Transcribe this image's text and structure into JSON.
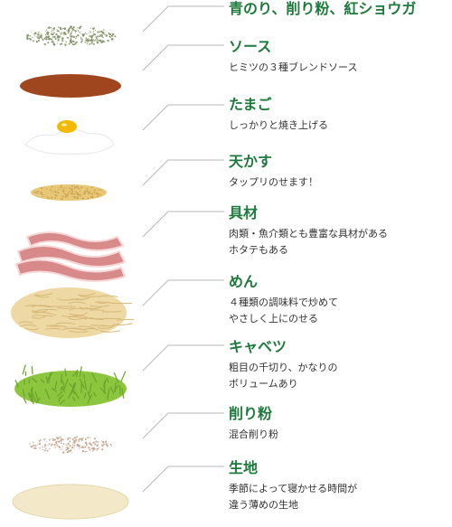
{
  "layers": [
    {
      "title": "青のり、削り粉、紅ショウガ",
      "desc": []
    },
    {
      "title": "ソース",
      "desc": [
        "ヒミツの３種ブレンドソース"
      ]
    },
    {
      "title": "たまご",
      "desc": [
        "しっかりと焼き上げる"
      ]
    },
    {
      "title": "天かす",
      "desc": [
        "タップリのせます！"
      ]
    },
    {
      "title": "具材",
      "desc": [
        "肉類・魚介類とも豊富な具材がある",
        "ホタテもある"
      ]
    },
    {
      "title": "めん",
      "desc": [
        "４種類の調味料で炒めて",
        "やさしく上にのせる"
      ]
    },
    {
      "title": "キャベツ",
      "desc": [
        "粗目の千切り、かなりの",
        "ボリュームあり"
      ]
    },
    {
      "title": "削り粉",
      "desc": [
        "混合削り粉"
      ]
    },
    {
      "title": "生地",
      "desc": [
        "季節によって寝かせる時間が",
        "違う薄めの生地"
      ]
    }
  ],
  "colors": {
    "title": "#1e7a3c",
    "text": "#333333",
    "leader": "#b8b8b8",
    "aonori": "#8a9a70",
    "sauce": "#a0461e",
    "egg_white": "#ffffff",
    "egg_yolk": "#f5b800",
    "tenkasu": "#e8c878",
    "bacon": "#d88a8a",
    "noodle": "#eed9a4",
    "cabbage": "#8cc63f",
    "kezuriko": "#c8a890",
    "dough": "#f3e9c8"
  }
}
